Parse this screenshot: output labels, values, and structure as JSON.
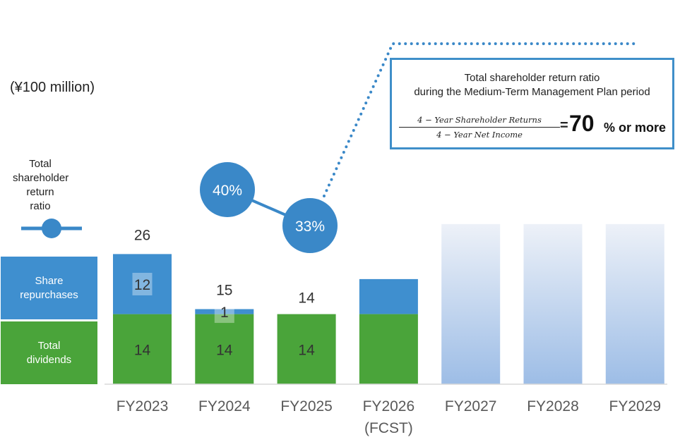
{
  "unit_label": "(¥100 million)",
  "legend": {
    "ratio_label": "Total\nshareholder\nreturn\nratio",
    "repurchase_label": "Share\nrepurchases",
    "dividend_label": "Total\ndividends"
  },
  "plan_box": {
    "title": "Total shareholder return ratio\nduring the Medium-Term Management Plan period",
    "numerator": "4 − Year Shareholder Returns",
    "denominator": "4 − Year Net Income",
    "equals": "=",
    "target_value": "70",
    "target_suffix": "% or more"
  },
  "colors": {
    "dividend": "#4aa43a",
    "repurchase": "#3f8fcf",
    "ratio": "#3a88c8",
    "forecast_fade": "#e9eff7",
    "plan_bar_top": "#edf1f8",
    "plan_bar_bottom": "#9dbde6"
  },
  "chart_data": {
    "type": "bar",
    "stacked": true,
    "categories": [
      "FY2023",
      "FY2024",
      "FY2025",
      "FY2026",
      "FY2027",
      "FY2028",
      "FY2029"
    ],
    "category_sublabels": [
      "",
      "",
      "",
      "(FCST)",
      "",
      "",
      ""
    ],
    "series": [
      {
        "name": "Total dividends",
        "values": [
          14,
          14,
          14,
          null,
          null,
          null,
          null
        ],
        "labels": [
          "14",
          "14",
          "14",
          "",
          "",
          "",
          ""
        ]
      },
      {
        "name": "Share repurchases",
        "values": [
          12,
          1,
          0,
          null,
          null,
          null,
          null
        ],
        "labels": [
          "12",
          "1",
          "",
          "",
          "",
          "",
          ""
        ]
      }
    ],
    "totals": [
      26,
      15,
      14,
      null,
      null,
      null,
      null
    ],
    "total_labels": [
      "26",
      "15",
      "14",
      "",
      "",
      "",
      ""
    ],
    "forecast": {
      "category": "FY2026",
      "dividends": 14,
      "repurchases": 7,
      "upper_range": 18.5
    },
    "plan_bars": {
      "categories": [
        "FY2027",
        "FY2028",
        "FY2029"
      ],
      "value": 32
    },
    "ratio_series": {
      "name": "Total shareholder return ratio",
      "points": [
        {
          "category": "FY2024",
          "value": 40,
          "label": "40%"
        },
        {
          "category": "FY2025",
          "value": 33,
          "label": "33%"
        }
      ]
    },
    "ylim": [
      0,
      40
    ],
    "legend": "left"
  }
}
